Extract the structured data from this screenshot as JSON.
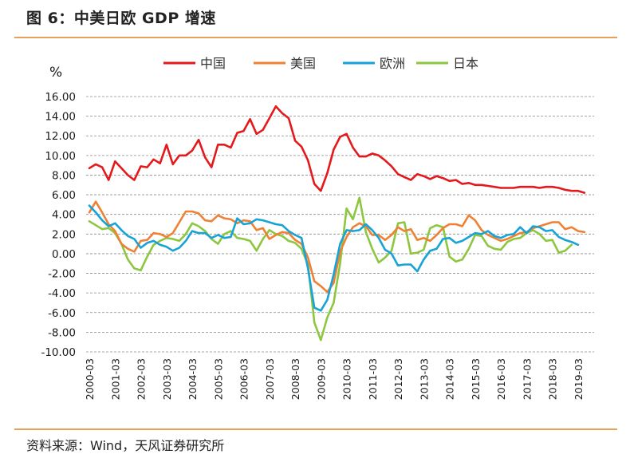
{
  "figure": {
    "title": "图 6：中美日欧 GDP 增速",
    "source": "资料来源：Wind，天风证券研究所"
  },
  "chart_data": {
    "type": "line",
    "ylabel": "%",
    "ylim": [
      -10,
      16
    ],
    "yticks": [
      "16.00",
      "14.00",
      "12.00",
      "10.00",
      "8.00",
      "6.00",
      "4.00",
      "2.00",
      "0.00",
      "-2.00",
      "-4.00",
      "-6.00",
      "-8.00",
      "-10.00"
    ],
    "xtick_labels": [
      "2000-03",
      "2001-03",
      "2002-03",
      "2003-03",
      "2004-03",
      "2005-03",
      "2006-03",
      "2007-03",
      "2008-03",
      "2009-03",
      "2010-03",
      "2011-03",
      "2012-03",
      "2013-03",
      "2014-03",
      "2015-03",
      "2016-03",
      "2017-03",
      "2018-03",
      "2019-03"
    ],
    "grid": true,
    "legend_position": "top",
    "x_start": "2000Q1",
    "series": [
      {
        "name": "中国",
        "color": "#e3191c",
        "values": [
          8.7,
          9.1,
          8.8,
          7.5,
          9.4,
          8.7,
          8.0,
          7.5,
          8.9,
          8.8,
          9.6,
          9.2,
          11.1,
          9.1,
          10.0,
          10.0,
          10.5,
          11.6,
          9.8,
          8.8,
          11.1,
          11.1,
          10.8,
          12.3,
          12.5,
          13.7,
          12.2,
          12.6,
          13.8,
          15.0,
          14.3,
          13.8,
          11.5,
          10.9,
          9.5,
          7.1,
          6.4,
          8.2,
          10.6,
          11.9,
          12.2,
          10.8,
          9.9,
          9.9,
          10.2,
          10.0,
          9.5,
          8.9,
          8.1,
          7.8,
          7.5,
          8.1,
          7.9,
          7.6,
          7.9,
          7.7,
          7.4,
          7.5,
          7.1,
          7.2,
          7.0,
          7.0,
          6.9,
          6.8,
          6.7,
          6.7,
          6.7,
          6.8,
          6.8,
          6.8,
          6.7,
          6.8,
          6.8,
          6.7,
          6.5,
          6.4,
          6.4,
          6.2
        ]
      },
      {
        "name": "美国",
        "color": "#ee8133",
        "values": [
          4.2,
          5.3,
          4.2,
          3.0,
          2.3,
          1.0,
          0.5,
          0.2,
          1.3,
          1.4,
          2.1,
          2.0,
          1.7,
          2.1,
          3.2,
          4.3,
          4.3,
          4.1,
          3.4,
          3.3,
          3.9,
          3.6,
          3.5,
          3.1,
          3.4,
          3.3,
          2.4,
          2.6,
          1.5,
          1.9,
          2.2,
          2.1,
          1.4,
          1.0,
          -0.4,
          -2.8,
          -3.3,
          -3.9,
          -3.0,
          0.2,
          1.7,
          2.7,
          3.1,
          2.8,
          1.9,
          1.9,
          1.4,
          1.9,
          2.7,
          2.3,
          2.5,
          1.4,
          1.6,
          1.3,
          1.9,
          2.6,
          3.0,
          3.0,
          2.8,
          3.9,
          3.4,
          2.4,
          1.9,
          1.6,
          1.3,
          1.5,
          1.8,
          2.1,
          2.2,
          2.6,
          2.8,
          3.0,
          3.2,
          3.2,
          2.5,
          2.7,
          2.3,
          2.2
        ]
      },
      {
        "name": "欧洲",
        "color": "#17a2d8",
        "values": [
          4.9,
          4.2,
          3.4,
          2.8,
          3.1,
          2.4,
          1.8,
          1.5,
          0.6,
          1.1,
          1.3,
          0.9,
          0.7,
          0.3,
          0.6,
          1.3,
          2.3,
          2.1,
          2.1,
          1.6,
          1.9,
          1.6,
          1.7,
          3.6,
          3.0,
          3.1,
          3.5,
          3.4,
          3.2,
          3.0,
          2.9,
          2.3,
          1.9,
          1.6,
          -1.5,
          -5.5,
          -5.8,
          -4.7,
          -2.1,
          1.0,
          2.4,
          2.3,
          2.4,
          3.0,
          2.4,
          1.6,
          0.4,
          0.0,
          -1.2,
          -1.1,
          -1.1,
          -1.8,
          -0.6,
          0.3,
          0.5,
          1.5,
          1.6,
          1.1,
          1.3,
          1.7,
          2.1,
          2.0,
          2.3,
          1.8,
          1.6,
          1.9,
          2.0,
          2.7,
          2.1,
          2.8,
          2.7,
          2.3,
          2.4,
          1.7,
          1.4,
          1.2,
          0.9
        ]
      },
      {
        "name": "日本",
        "color": "#8dc63f",
        "values": [
          3.3,
          2.9,
          2.5,
          2.6,
          2.1,
          1.0,
          -0.6,
          -1.5,
          -1.7,
          -0.3,
          0.9,
          1.3,
          1.6,
          1.5,
          1.3,
          2.0,
          3.1,
          2.8,
          2.3,
          1.5,
          1.0,
          2.0,
          2.3,
          1.6,
          1.5,
          1.3,
          0.3,
          1.5,
          2.4,
          2.0,
          1.8,
          1.3,
          1.1,
          0.5,
          -1.1,
          -7.0,
          -8.8,
          -6.5,
          -5.0,
          -1.0,
          4.6,
          3.5,
          5.7,
          2.2,
          0.5,
          -0.9,
          -0.4,
          0.3,
          3.1,
          3.2,
          0.0,
          0.1,
          0.4,
          2.6,
          2.9,
          2.7,
          -0.3,
          -0.8,
          -0.6,
          0.5,
          1.9,
          1.8,
          0.8,
          0.5,
          0.4,
          1.2,
          1.5,
          1.6,
          2.1,
          2.4,
          2.0,
          1.3,
          1.4,
          0.1,
          0.3,
          0.9
        ]
      }
    ]
  }
}
